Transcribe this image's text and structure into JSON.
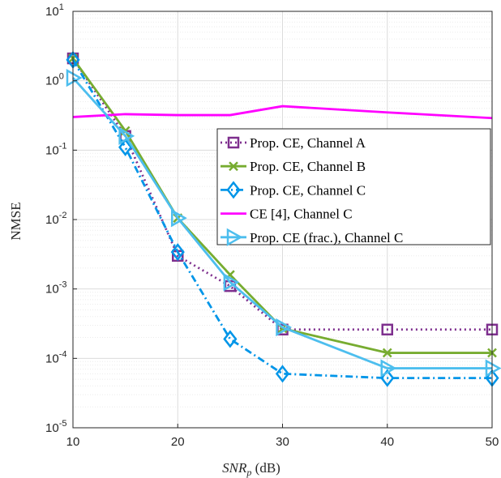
{
  "chart_data": {
    "type": "line",
    "xlabel": "SNR_p (dB)",
    "xlabel_parts": {
      "var": "SNR",
      "sub": "p",
      "unit": " (dB)"
    },
    "ylabel": "NMSE",
    "x_scale": "linear",
    "y_scale": "log",
    "xlim": [
      10,
      50
    ],
    "ylim": [
      1e-05,
      10
    ],
    "x_ticks": [
      10,
      20,
      30,
      40,
      50
    ],
    "x_tick_labels": [
      "10",
      "20",
      "30",
      "40",
      "50"
    ],
    "y_ticks": [
      1e-05,
      0.0001,
      0.001,
      0.01,
      0.1,
      1,
      10
    ],
    "y_tick_labels": [
      {
        "base": "10",
        "exp": "-5"
      },
      {
        "base": "10",
        "exp": "-4"
      },
      {
        "base": "10",
        "exp": "-3"
      },
      {
        "base": "10",
        "exp": "-2"
      },
      {
        "base": "10",
        "exp": "-1"
      },
      {
        "base": "10",
        "exp": "0"
      },
      {
        "base": "10",
        "exp": "1"
      }
    ],
    "grid": true,
    "legend_position": "center-right",
    "series": [
      {
        "name": "Prop. CE, Channel A",
        "color": "#7E2F8E",
        "dash": "dotted",
        "marker": "square",
        "x": [
          10,
          15,
          20,
          25,
          30,
          40,
          50
        ],
        "y": [
          2.1,
          0.16,
          0.003,
          0.0011,
          0.00026,
          0.00026,
          0.00026
        ]
      },
      {
        "name": "Prop. CE, Channel B",
        "color": "#77AC30",
        "dash": "solid",
        "marker": "x",
        "x": [
          10,
          15,
          20,
          25,
          30,
          40,
          50
        ],
        "y": [
          2.1,
          0.19,
          0.0105,
          0.0016,
          0.00027,
          0.00012,
          0.00012
        ]
      },
      {
        "name": "Prop. CE, Channel C",
        "color": "#0095E8",
        "dash": "dashdot",
        "marker": "diamond",
        "x": [
          10,
          15,
          20,
          25,
          30,
          40,
          50
        ],
        "y": [
          2.0,
          0.11,
          0.0034,
          0.00019,
          6e-05,
          5.2e-05,
          5.2e-05
        ]
      },
      {
        "name": "CE [4], Channel C",
        "color": "#FF00FF",
        "dash": "solid",
        "marker": "none",
        "x": [
          10,
          15,
          20,
          25,
          30,
          40,
          50
        ],
        "y": [
          0.3,
          0.33,
          0.32,
          0.32,
          0.43,
          0.35,
          0.29
        ]
      },
      {
        "name": "Prop. CE (frac.), Channel C",
        "color": "#4DBEEE",
        "dash": "solid",
        "marker": "triangle-right",
        "x": [
          10,
          15,
          20,
          25,
          30,
          40,
          50
        ],
        "y": [
          1.1,
          0.16,
          0.0105,
          0.00125,
          0.00028,
          7.2e-05,
          7.2e-05
        ]
      }
    ]
  }
}
